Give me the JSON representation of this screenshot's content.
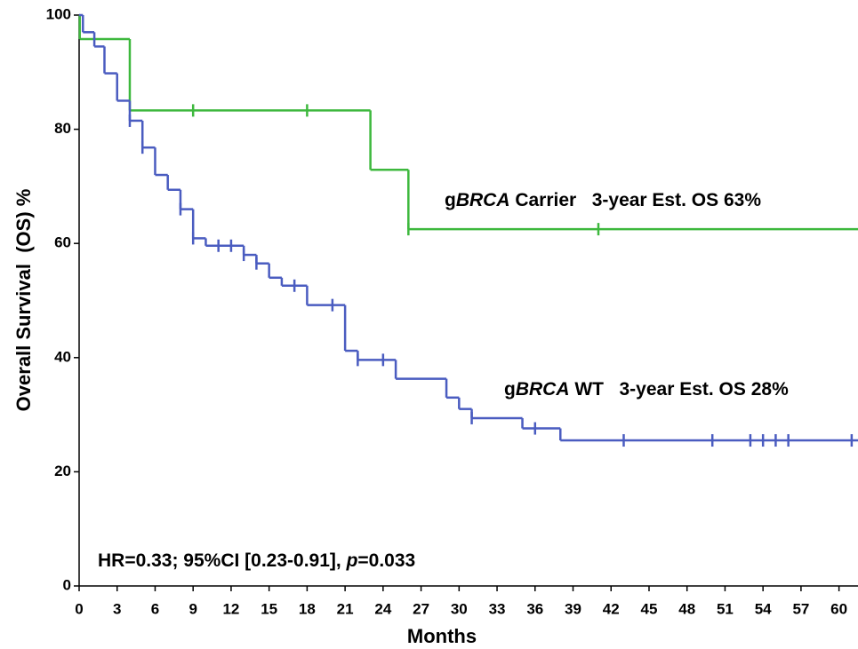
{
  "chart_data": {
    "type": "step",
    "xlabel": "Months",
    "ylabel": "Overall Survival  (OS) %",
    "xlim": [
      0,
      61.5
    ],
    "ylim": [
      0,
      100
    ],
    "xticks": [
      0,
      3,
      6,
      9,
      12,
      15,
      18,
      21,
      24,
      27,
      30,
      33,
      36,
      39,
      42,
      45,
      48,
      51,
      54,
      57,
      60
    ],
    "yticks": [
      0,
      20,
      40,
      60,
      80,
      100
    ],
    "series": [
      {
        "name": "gBRCA Carrier",
        "color": "#3db83d",
        "x": [
          0,
          0.05,
          4,
          23,
          26
        ],
        "values": [
          100,
          95.8,
          83.3,
          72.9,
          62.5
        ],
        "censor_x": [
          9,
          18,
          26,
          41
        ],
        "censor_values": [
          83.3,
          83.3,
          62.5,
          62.5
        ]
      },
      {
        "name": "gBRCA WT",
        "color": "#4a5cc0",
        "x": [
          0,
          0.3,
          1.2,
          2,
          3,
          4,
          5,
          6,
          7,
          8,
          9,
          10,
          13,
          14,
          15,
          16,
          18,
          21,
          22,
          25,
          29,
          30,
          31,
          35,
          38
        ],
        "values": [
          100,
          97,
          94.5,
          89.8,
          85,
          81.5,
          76.8,
          72,
          69.4,
          66,
          60.9,
          59.6,
          58,
          56.5,
          54,
          52.6,
          49.2,
          41.2,
          39.6,
          36.3,
          33,
          31,
          29.4,
          27.6,
          25.5
        ],
        "censor_x": [
          4,
          5,
          8,
          9,
          11,
          12,
          13,
          14,
          17,
          20,
          22,
          24,
          31,
          36,
          43,
          50,
          53,
          54,
          55,
          56,
          61
        ],
        "censor_values": [
          81.5,
          76.8,
          66,
          60.9,
          59.6,
          59.6,
          58,
          56.5,
          52.6,
          49.2,
          39.6,
          39.6,
          29.4,
          27.6,
          25.5,
          25.5,
          25.5,
          25.5,
          25.5,
          25.5,
          25.5
        ]
      }
    ],
    "annotations": [
      {
        "prefix": "g",
        "italic": "BRCA",
        "suffix": " Carrier   3-year Est. OS 63%"
      },
      {
        "prefix": "g",
        "italic": "BRCA",
        "suffix": " WT   3-year Est. OS 28%"
      },
      {
        "prefix": "HR=0.33; 95%CI [0.23-0.91], ",
        "italic": "p",
        "suffix": "=0.033"
      }
    ]
  }
}
